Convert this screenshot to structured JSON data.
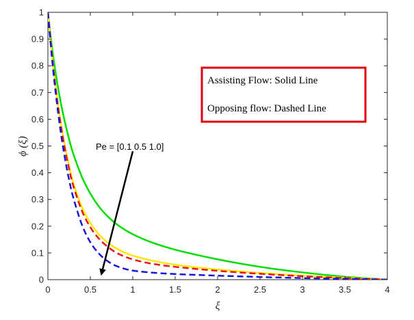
{
  "chart_data": {
    "type": "line",
    "xlabel": "ξ",
    "ylabel": "ϕ (ξ)",
    "xlim": [
      0,
      4
    ],
    "ylim": [
      0,
      1
    ],
    "x_ticks": [
      "0",
      "0.5",
      "1",
      "1.5",
      "2",
      "2.5",
      "3",
      "3.5",
      "4"
    ],
    "y_ticks": [
      "0",
      "0.1",
      "0.2",
      "0.3",
      "0.4",
      "0.5",
      "0.6",
      "0.7",
      "0.8",
      "0.9",
      "1"
    ],
    "grid": false,
    "x": [
      0,
      0.05,
      0.1,
      0.15,
      0.2,
      0.25,
      0.3,
      0.4,
      0.5,
      0.6,
      0.7,
      0.8,
      0.9,
      1.0,
      1.2,
      1.5,
      2.0,
      2.5,
      3.0,
      3.5,
      4.0
    ],
    "series": [
      {
        "style": "solid",
        "color": "#00dd00",
        "values": [
          1.0,
          0.865,
          0.755,
          0.665,
          0.59,
          0.525,
          0.47,
          0.385,
          0.322,
          0.274,
          0.238,
          0.21,
          0.188,
          0.17,
          0.142,
          0.112,
          0.076,
          0.048,
          0.027,
          0.011,
          0.0
        ]
      },
      {
        "style": "solid",
        "color": "#ffe600",
        "values": [
          1.0,
          0.835,
          0.7,
          0.59,
          0.5,
          0.425,
          0.362,
          0.272,
          0.212,
          0.17,
          0.14,
          0.118,
          0.102,
          0.09,
          0.073,
          0.056,
          0.038,
          0.025,
          0.015,
          0.007,
          0.0
        ]
      },
      {
        "style": "dashed",
        "color": "#e8141b",
        "values": [
          1.0,
          0.832,
          0.694,
          0.582,
          0.49,
          0.414,
          0.35,
          0.258,
          0.196,
          0.154,
          0.124,
          0.102,
          0.087,
          0.076,
          0.061,
          0.048,
          0.033,
          0.022,
          0.013,
          0.006,
          0.0
        ]
      },
      {
        "style": "dashed",
        "color": "#1616d6",
        "values": [
          1.0,
          0.822,
          0.676,
          0.555,
          0.455,
          0.373,
          0.306,
          0.206,
          0.14,
          0.098,
          0.07,
          0.052,
          0.041,
          0.034,
          0.027,
          0.021,
          0.015,
          0.01,
          0.006,
          0.003,
          0.0
        ]
      }
    ],
    "annotations": {
      "arrow_label": "Pe = [0.1  0.5 1.0]",
      "arrow_from": [
        1.0,
        0.48
      ],
      "arrow_to": [
        0.63,
        0.02
      ],
      "legend_line1": "Assisting Flow:  Solid Line",
      "legend_line2": "Opposing flow: Dashed Line",
      "legend_border_color": "#e0000f"
    }
  }
}
